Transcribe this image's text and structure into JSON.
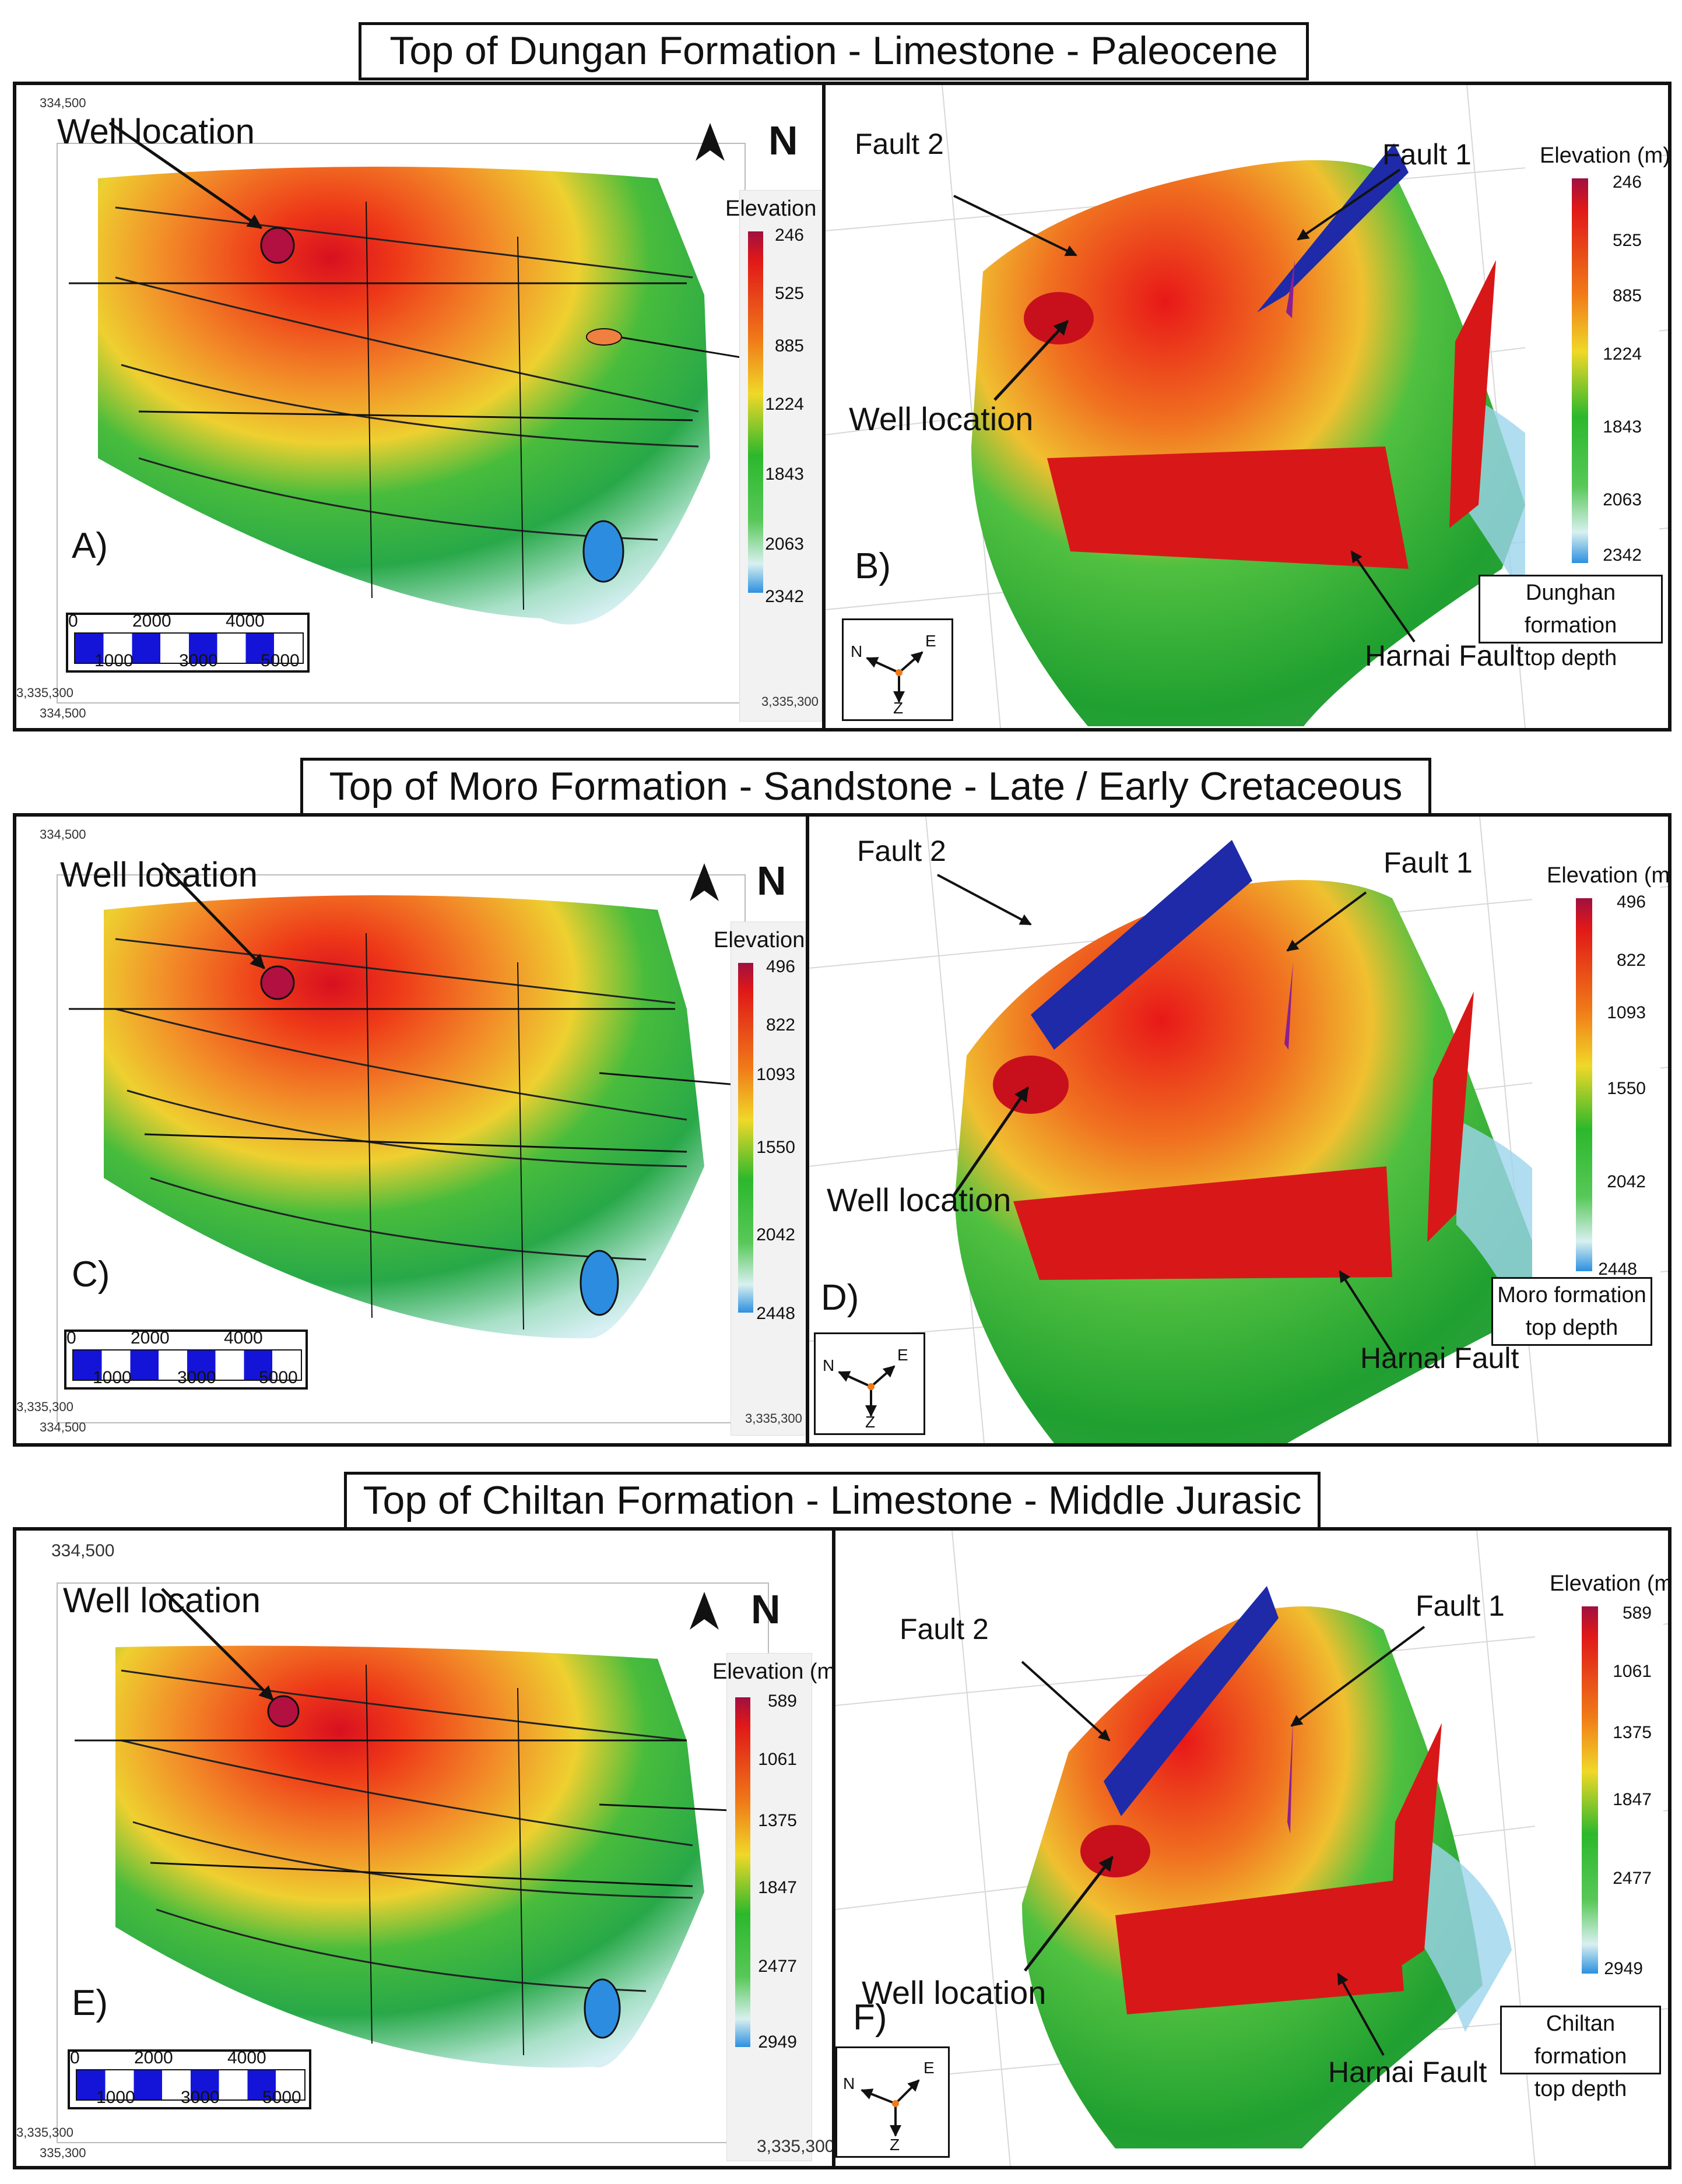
{
  "titles": {
    "top": "Top of Dungan Formation  - Limestone - Paleocene",
    "middle": "Top of Moro Formation - Sandstone - Late / Early Cretaceous",
    "bottom": "Top of Chiltan Formation - Limestone - Middle Jurasic"
  },
  "legend_title": "Elevation (m)",
  "north_label": "N",
  "well_label": "Well location",
  "fault1_label": "Fault 1",
  "fault2_label": "Fault 2",
  "harnai_label": "Harnai Fault",
  "axes": {
    "n": "N",
    "e": "E",
    "z": "Z"
  },
  "scale": {
    "top": [
      "0",
      "2000",
      "4000"
    ],
    "bottom": [
      "1000",
      "3000",
      "5000"
    ]
  },
  "coords": {
    "top_left": "334,500",
    "bottom_left_a": "3,335,300",
    "bottom_left_b": "334,500",
    "bottom_right": "3,335,300"
  },
  "coords_e": {
    "top_left": "334,500",
    "bottom_left_a": "3,335,300",
    "bottom_left_b": "335,300",
    "bottom_right": "3,335,300"
  },
  "panels": {
    "A": {
      "letter": "A)",
      "ticks": [
        "246",
        "525",
        "885",
        "1224",
        "1843",
        "2063",
        "2342"
      ]
    },
    "B": {
      "letter": "B)",
      "ticks": [
        "246",
        "525",
        "885",
        "1224",
        "1843",
        "2063",
        "2342"
      ],
      "caption": [
        "Dunghan formation",
        "top depth"
      ]
    },
    "C": {
      "letter": "C)",
      "ticks": [
        "496",
        "822",
        "1093",
        "1550",
        "2042",
        "2448"
      ]
    },
    "D": {
      "letter": "D)",
      "ticks": [
        "496",
        "822",
        "1093",
        "1550",
        "2042",
        "2448"
      ],
      "caption": [
        "Moro formation",
        "top depth"
      ]
    },
    "E": {
      "letter": "E)",
      "ticks": [
        "589",
        "1061",
        "1375",
        "1847",
        "2477",
        "2949"
      ]
    },
    "F": {
      "letter": "F)",
      "ticks": [
        "589",
        "1061",
        "1375",
        "1847",
        "2477",
        "2949"
      ],
      "caption": [
        "Chiltan formation",
        "top depth"
      ]
    }
  },
  "colors": {
    "red": "#e01818",
    "orange": "#f07a18",
    "yellow": "#f0d828",
    "green": "#2cb82c",
    "blue": "#1e2aa8",
    "light_blue": "#8cd0ec"
  }
}
